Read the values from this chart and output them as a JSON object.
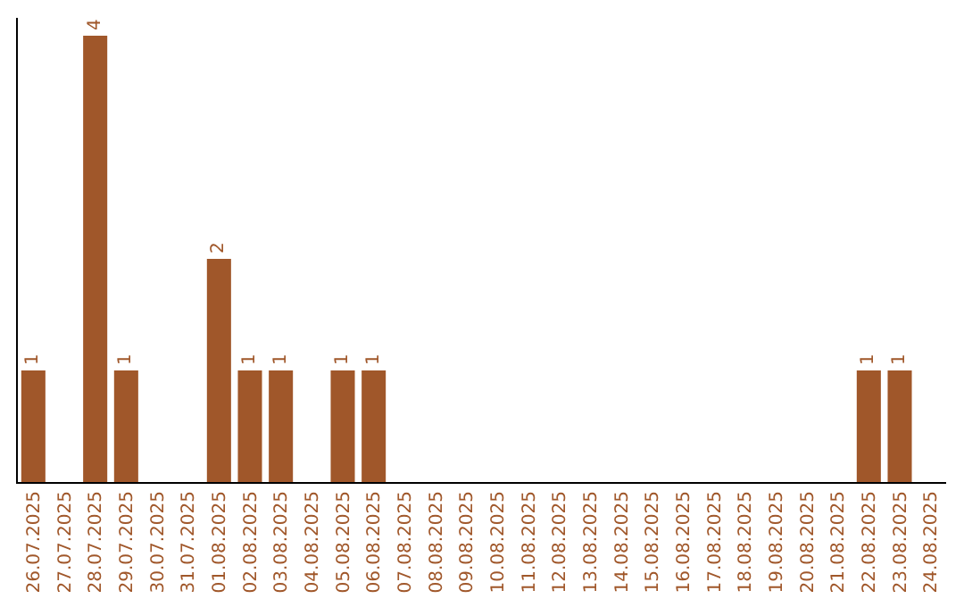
{
  "chart_data": {
    "type": "bar",
    "categories": [
      "26.07.2025",
      "27.07.2025",
      "28.07.2025",
      "29.07.2025",
      "30.07.2025",
      "31.07.2025",
      "01.08.2025",
      "02.08.2025",
      "03.08.2025",
      "04.08.2025",
      "05.08.2025",
      "06.08.2025",
      "07.08.2025",
      "08.08.2025",
      "09.08.2025",
      "10.08.2025",
      "11.08.2025",
      "12.08.2025",
      "13.08.2025",
      "14.08.2025",
      "15.08.2025",
      "16.08.2025",
      "17.08.2025",
      "18.08.2025",
      "19.08.2025",
      "20.08.2025",
      "21.08.2025",
      "22.08.2025",
      "23.08.2025",
      "24.08.2025"
    ],
    "values": [
      1,
      0,
      4,
      1,
      0,
      0,
      2,
      1,
      1,
      0,
      1,
      1,
      0,
      0,
      0,
      0,
      0,
      0,
      0,
      0,
      0,
      0,
      0,
      0,
      0,
      0,
      0,
      1,
      1,
      0
    ],
    "value_labels": [
      "1",
      null,
      "4",
      "1",
      null,
      null,
      "2",
      "1",
      "1",
      null,
      "1",
      "1",
      null,
      null,
      null,
      null,
      null,
      null,
      null,
      null,
      null,
      null,
      null,
      null,
      null,
      null,
      null,
      "1",
      "1",
      null
    ],
    "color": "#a0572a",
    "grid": false,
    "legend": false
  }
}
